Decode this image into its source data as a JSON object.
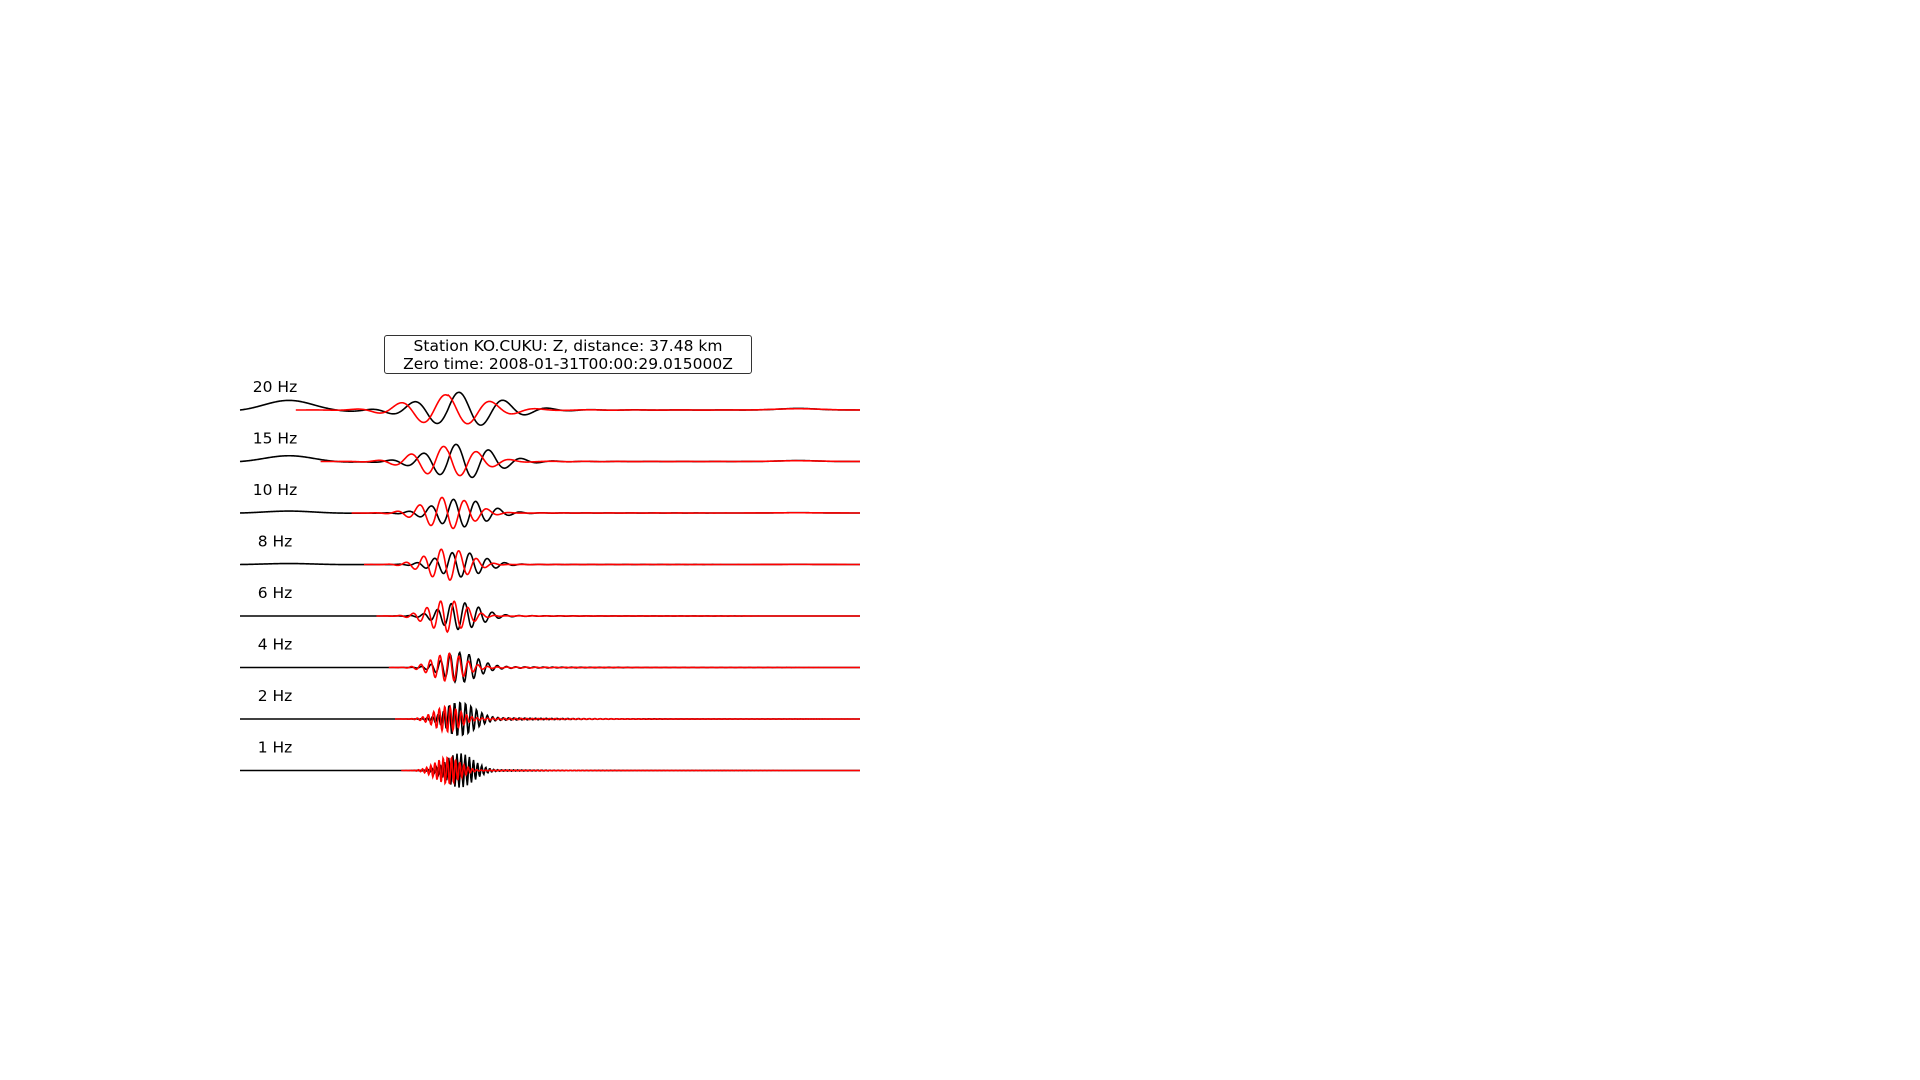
{
  "chart_data": {
    "type": "line",
    "title_line1": "Station KO.CUKU: Z, distance: 37.48 km",
    "title_line2": "Zero time: 2008-01-31T00:00:29.015000Z",
    "xlabel": "",
    "ylabel": "",
    "grid": false,
    "axes_visible": false,
    "colors": {
      "observed": "#000000",
      "synthetic": "#ff0000"
    },
    "traces": [
      {
        "label": "20 Hz",
        "obs_start": 0.0,
        "syn_start": 0.09,
        "obs_freq": 0.55,
        "obs_amp": 1.0,
        "syn_amp": 0.95,
        "pre_wave": 1.0,
        "tail": 0.35
      },
      {
        "label": "15 Hz",
        "obs_start": 0.0,
        "syn_start": 0.13,
        "obs_freq": 0.75,
        "obs_amp": 1.0,
        "syn_amp": 0.95,
        "pre_wave": 0.6,
        "tail": 0.25
      },
      {
        "label": "10 Hz",
        "obs_start": 0.0,
        "syn_start": 0.18,
        "obs_freq": 1.1,
        "obs_amp": 0.85,
        "syn_amp": 1.0,
        "pre_wave": 0.2,
        "tail": 0.1
      },
      {
        "label": "8 Hz",
        "obs_start": 0.0,
        "syn_start": 0.2,
        "obs_freq": 1.4,
        "obs_amp": 0.75,
        "syn_amp": 1.0,
        "pre_wave": 0.1,
        "tail": 0.1
      },
      {
        "label": "6 Hz",
        "obs_start": 0.0,
        "syn_start": 0.22,
        "obs_freq": 1.8,
        "obs_amp": 0.8,
        "syn_amp": 1.0,
        "pre_wave": 0.0,
        "tail": 0.15
      },
      {
        "label": "4 Hz",
        "obs_start": 0.0,
        "syn_start": 0.24,
        "obs_freq": 2.6,
        "obs_amp": 0.85,
        "syn_amp": 0.85,
        "pre_wave": 0.0,
        "tail": 0.3
      },
      {
        "label": "2 Hz",
        "obs_start": 0.0,
        "syn_start": 0.25,
        "obs_freq": 4.5,
        "obs_amp": 0.95,
        "syn_amp": 0.8,
        "pre_wave": 0.0,
        "tail": 0.45
      },
      {
        "label": "1 Hz",
        "obs_start": 0.0,
        "syn_start": 0.26,
        "obs_freq": 6.0,
        "obs_amp": 1.0,
        "syn_amp": 0.85,
        "pre_wave": 0.0,
        "tail": 0.25
      }
    ]
  }
}
